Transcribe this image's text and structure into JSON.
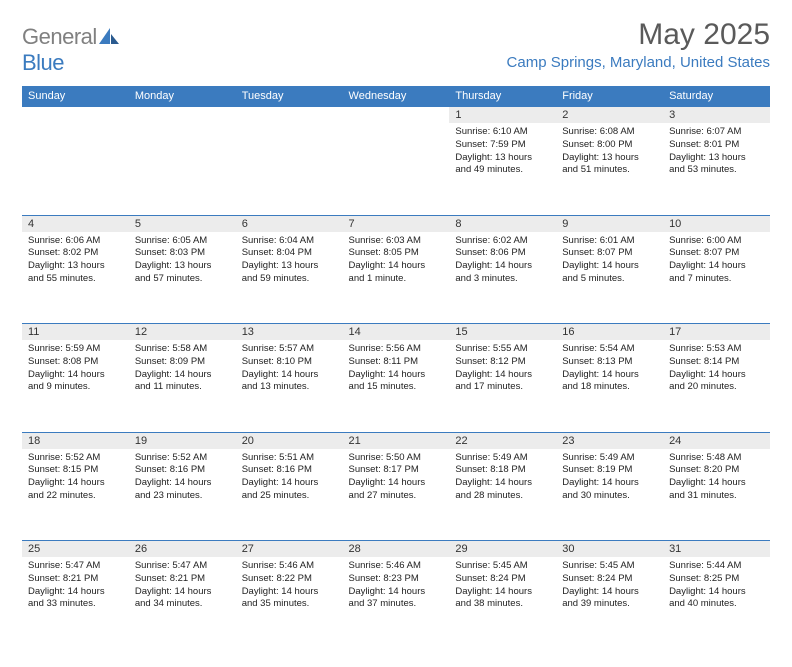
{
  "logo": {
    "part1": "General",
    "part2": "Blue"
  },
  "title": "May 2025",
  "location": "Camp Springs, Maryland, United States",
  "colors": {
    "header_bg": "#3b7bbf",
    "header_text": "#ffffff",
    "daynum_bg": "#ececec",
    "page_bg": "#ffffff",
    "title_color": "#5a5a5a",
    "location_color": "#3b7bbf",
    "logo_gray": "#808080",
    "logo_blue": "#3b7bbf",
    "cell_border": "#3b7bbf"
  },
  "day_headers": [
    "Sunday",
    "Monday",
    "Tuesday",
    "Wednesday",
    "Thursday",
    "Friday",
    "Saturday"
  ],
  "weeks": [
    [
      null,
      null,
      null,
      null,
      {
        "n": "1",
        "sr": "Sunrise: 6:10 AM",
        "ss": "Sunset: 7:59 PM",
        "d1": "Daylight: 13 hours",
        "d2": "and 49 minutes."
      },
      {
        "n": "2",
        "sr": "Sunrise: 6:08 AM",
        "ss": "Sunset: 8:00 PM",
        "d1": "Daylight: 13 hours",
        "d2": "and 51 minutes."
      },
      {
        "n": "3",
        "sr": "Sunrise: 6:07 AM",
        "ss": "Sunset: 8:01 PM",
        "d1": "Daylight: 13 hours",
        "d2": "and 53 minutes."
      }
    ],
    [
      {
        "n": "4",
        "sr": "Sunrise: 6:06 AM",
        "ss": "Sunset: 8:02 PM",
        "d1": "Daylight: 13 hours",
        "d2": "and 55 minutes."
      },
      {
        "n": "5",
        "sr": "Sunrise: 6:05 AM",
        "ss": "Sunset: 8:03 PM",
        "d1": "Daylight: 13 hours",
        "d2": "and 57 minutes."
      },
      {
        "n": "6",
        "sr": "Sunrise: 6:04 AM",
        "ss": "Sunset: 8:04 PM",
        "d1": "Daylight: 13 hours",
        "d2": "and 59 minutes."
      },
      {
        "n": "7",
        "sr": "Sunrise: 6:03 AM",
        "ss": "Sunset: 8:05 PM",
        "d1": "Daylight: 14 hours",
        "d2": "and 1 minute."
      },
      {
        "n": "8",
        "sr": "Sunrise: 6:02 AM",
        "ss": "Sunset: 8:06 PM",
        "d1": "Daylight: 14 hours",
        "d2": "and 3 minutes."
      },
      {
        "n": "9",
        "sr": "Sunrise: 6:01 AM",
        "ss": "Sunset: 8:07 PM",
        "d1": "Daylight: 14 hours",
        "d2": "and 5 minutes."
      },
      {
        "n": "10",
        "sr": "Sunrise: 6:00 AM",
        "ss": "Sunset: 8:07 PM",
        "d1": "Daylight: 14 hours",
        "d2": "and 7 minutes."
      }
    ],
    [
      {
        "n": "11",
        "sr": "Sunrise: 5:59 AM",
        "ss": "Sunset: 8:08 PM",
        "d1": "Daylight: 14 hours",
        "d2": "and 9 minutes."
      },
      {
        "n": "12",
        "sr": "Sunrise: 5:58 AM",
        "ss": "Sunset: 8:09 PM",
        "d1": "Daylight: 14 hours",
        "d2": "and 11 minutes."
      },
      {
        "n": "13",
        "sr": "Sunrise: 5:57 AM",
        "ss": "Sunset: 8:10 PM",
        "d1": "Daylight: 14 hours",
        "d2": "and 13 minutes."
      },
      {
        "n": "14",
        "sr": "Sunrise: 5:56 AM",
        "ss": "Sunset: 8:11 PM",
        "d1": "Daylight: 14 hours",
        "d2": "and 15 minutes."
      },
      {
        "n": "15",
        "sr": "Sunrise: 5:55 AM",
        "ss": "Sunset: 8:12 PM",
        "d1": "Daylight: 14 hours",
        "d2": "and 17 minutes."
      },
      {
        "n": "16",
        "sr": "Sunrise: 5:54 AM",
        "ss": "Sunset: 8:13 PM",
        "d1": "Daylight: 14 hours",
        "d2": "and 18 minutes."
      },
      {
        "n": "17",
        "sr": "Sunrise: 5:53 AM",
        "ss": "Sunset: 8:14 PM",
        "d1": "Daylight: 14 hours",
        "d2": "and 20 minutes."
      }
    ],
    [
      {
        "n": "18",
        "sr": "Sunrise: 5:52 AM",
        "ss": "Sunset: 8:15 PM",
        "d1": "Daylight: 14 hours",
        "d2": "and 22 minutes."
      },
      {
        "n": "19",
        "sr": "Sunrise: 5:52 AM",
        "ss": "Sunset: 8:16 PM",
        "d1": "Daylight: 14 hours",
        "d2": "and 23 minutes."
      },
      {
        "n": "20",
        "sr": "Sunrise: 5:51 AM",
        "ss": "Sunset: 8:16 PM",
        "d1": "Daylight: 14 hours",
        "d2": "and 25 minutes."
      },
      {
        "n": "21",
        "sr": "Sunrise: 5:50 AM",
        "ss": "Sunset: 8:17 PM",
        "d1": "Daylight: 14 hours",
        "d2": "and 27 minutes."
      },
      {
        "n": "22",
        "sr": "Sunrise: 5:49 AM",
        "ss": "Sunset: 8:18 PM",
        "d1": "Daylight: 14 hours",
        "d2": "and 28 minutes."
      },
      {
        "n": "23",
        "sr": "Sunrise: 5:49 AM",
        "ss": "Sunset: 8:19 PM",
        "d1": "Daylight: 14 hours",
        "d2": "and 30 minutes."
      },
      {
        "n": "24",
        "sr": "Sunrise: 5:48 AM",
        "ss": "Sunset: 8:20 PM",
        "d1": "Daylight: 14 hours",
        "d2": "and 31 minutes."
      }
    ],
    [
      {
        "n": "25",
        "sr": "Sunrise: 5:47 AM",
        "ss": "Sunset: 8:21 PM",
        "d1": "Daylight: 14 hours",
        "d2": "and 33 minutes."
      },
      {
        "n": "26",
        "sr": "Sunrise: 5:47 AM",
        "ss": "Sunset: 8:21 PM",
        "d1": "Daylight: 14 hours",
        "d2": "and 34 minutes."
      },
      {
        "n": "27",
        "sr": "Sunrise: 5:46 AM",
        "ss": "Sunset: 8:22 PM",
        "d1": "Daylight: 14 hours",
        "d2": "and 35 minutes."
      },
      {
        "n": "28",
        "sr": "Sunrise: 5:46 AM",
        "ss": "Sunset: 8:23 PM",
        "d1": "Daylight: 14 hours",
        "d2": "and 37 minutes."
      },
      {
        "n": "29",
        "sr": "Sunrise: 5:45 AM",
        "ss": "Sunset: 8:24 PM",
        "d1": "Daylight: 14 hours",
        "d2": "and 38 minutes."
      },
      {
        "n": "30",
        "sr": "Sunrise: 5:45 AM",
        "ss": "Sunset: 8:24 PM",
        "d1": "Daylight: 14 hours",
        "d2": "and 39 minutes."
      },
      {
        "n": "31",
        "sr": "Sunrise: 5:44 AM",
        "ss": "Sunset: 8:25 PM",
        "d1": "Daylight: 14 hours",
        "d2": "and 40 minutes."
      }
    ]
  ]
}
